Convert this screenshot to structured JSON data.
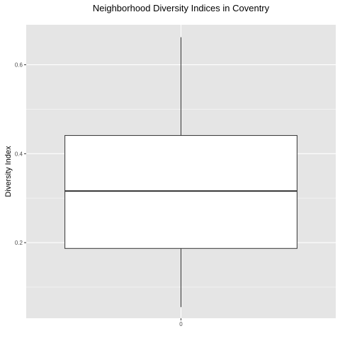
{
  "chart_data": {
    "type": "box",
    "title": "Neighborhood Diversity Indices in Coventry",
    "xlabel": "",
    "ylabel": "Diversity Index",
    "categories": [
      "0"
    ],
    "ylim": [
      0.03,
      0.69
    ],
    "yticks": [
      0.2,
      0.4,
      0.6
    ],
    "ytick_labels": [
      "0.2",
      "0.4",
      "0.6"
    ],
    "boxes": [
      {
        "category": "0",
        "min": 0.055,
        "q1": 0.187,
        "median": 0.316,
        "q3": 0.441,
        "max": 0.662
      }
    ],
    "grid": true,
    "legend": "none",
    "colors": {
      "panel": "#e5e5e5",
      "gridline": "#ffffff",
      "box_fill": "#ffffff",
      "box_stroke": "#333333"
    }
  }
}
